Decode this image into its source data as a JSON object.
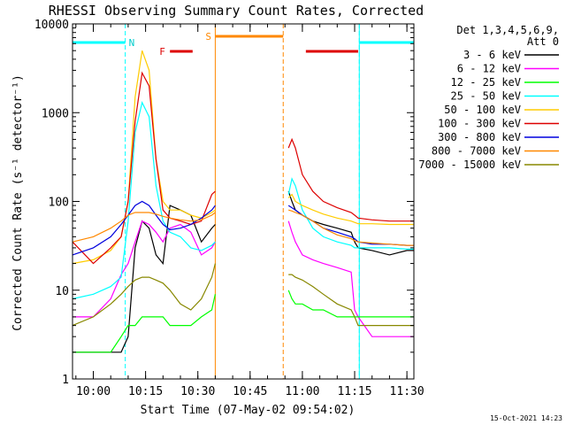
{
  "chart_data": {
    "type": "line",
    "title": "RHESSI Observing Summary Count Rates, Corrected",
    "xlabel": "Start Time (07-May-02 09:54:02)",
    "ylabel": "Corrected Count Rate (s⁻¹ detector⁻¹)",
    "yscale": "log",
    "ylim": [
      1,
      10000
    ],
    "xlim": [
      "09:54:02",
      "11:32:00"
    ],
    "x_ticks": [
      "10:00",
      "10:15",
      "10:30",
      "10:45",
      "11:00",
      "11:15",
      "11:30"
    ],
    "y_ticks": [
      "1",
      "10",
      "100",
      "1000",
      "10000"
    ],
    "legend_title": "Det 1,3,4,5,6,9,",
    "legend_subtitle": "Att 0",
    "legend_placement": "right",
    "timestamp": "15-Oct-2021 14:23",
    "annotations": {
      "N": "N",
      "F": "F",
      "S": "S"
    },
    "markers": {
      "night": [
        [
          "09:54:02",
          "10:09:10"
        ],
        [
          "11:16:20",
          "11:32:00"
        ]
      ],
      "flare": [
        [
          "10:22:00",
          "10:28:30"
        ],
        [
          "11:01:00",
          "11:16:00"
        ]
      ],
      "saa": [
        [
          "10:35:00",
          "10:54:30"
        ]
      ]
    },
    "gaps": [
      [
        "10:35:00",
        "10:55:30"
      ]
    ],
    "series": [
      {
        "name": "3 - 6 keV",
        "color": "#000000",
        "x": [
          "09:54:02",
          "10:00",
          "10:05",
          "10:08",
          "10:10",
          "10:12",
          "10:14",
          "10:16",
          "10:18",
          "10:20",
          "10:22",
          "10:25",
          "10:28",
          "10:31",
          "10:34",
          "10:35",
          "10:56",
          "10:57",
          "10:58",
          "11:00",
          "11:03",
          "11:06",
          "11:10",
          "11:14",
          "11:15",
          "11:16",
          "11:20",
          "11:25",
          "11:30",
          "11:32"
        ],
        "y": [
          2,
          2,
          2,
          2,
          3,
          30,
          60,
          50,
          25,
          20,
          90,
          80,
          70,
          35,
          50,
          55,
          130,
          100,
          80,
          70,
          60,
          55,
          50,
          45,
          35,
          30,
          28,
          25,
          28,
          28
        ]
      },
      {
        "name": "6 - 12 keV",
        "color": "#ff00ff",
        "x": [
          "09:54:02",
          "10:00",
          "10:05",
          "10:08",
          "10:10",
          "10:12",
          "10:14",
          "10:16",
          "10:18",
          "10:20",
          "10:22",
          "10:25",
          "10:28",
          "10:31",
          "10:34",
          "10:35",
          "10:56",
          "10:57",
          "10:58",
          "11:00",
          "11:03",
          "11:06",
          "11:10",
          "11:14",
          "11:15",
          "11:16",
          "11:20",
          "11:25",
          "11:30",
          "11:32"
        ],
        "y": [
          5,
          5,
          8,
          15,
          20,
          35,
          60,
          55,
          45,
          35,
          50,
          55,
          45,
          25,
          30,
          35,
          60,
          45,
          35,
          25,
          22,
          20,
          18,
          16,
          6,
          5,
          3,
          3,
          3,
          3
        ]
      },
      {
        "name": "12 - 25 keV",
        "color": "#00ff00",
        "x": [
          "09:54:02",
          "10:00",
          "10:05",
          "10:08",
          "10:10",
          "10:12",
          "10:14",
          "10:16",
          "10:18",
          "10:20",
          "10:22",
          "10:25",
          "10:28",
          "10:31",
          "10:34",
          "10:35",
          "10:56",
          "10:57",
          "10:58",
          "11:00",
          "11:03",
          "11:06",
          "11:10",
          "11:14",
          "11:15",
          "11:16",
          "11:20",
          "11:25",
          "11:30",
          "11:32"
        ],
        "y": [
          2,
          2,
          2,
          3,
          4,
          4,
          5,
          5,
          5,
          5,
          4,
          4,
          4,
          5,
          6,
          9,
          10,
          8,
          7,
          7,
          6,
          6,
          5,
          5,
          5,
          5,
          5,
          5,
          5,
          5
        ]
      },
      {
        "name": "25 - 50 keV",
        "color": "#00ffff",
        "x": [
          "09:54:02",
          "10:00",
          "10:05",
          "10:08",
          "10:10",
          "10:12",
          "10:14",
          "10:16",
          "10:18",
          "10:20",
          "10:22",
          "10:25",
          "10:28",
          "10:31",
          "10:34",
          "10:35",
          "10:56",
          "10:57",
          "10:58",
          "11:00",
          "11:03",
          "11:06",
          "11:10",
          "11:14",
          "11:15",
          "11:16",
          "11:20",
          "11:25",
          "11:30",
          "11:32"
        ],
        "y": [
          8,
          9,
          11,
          14,
          60,
          600,
          1300,
          900,
          150,
          60,
          45,
          40,
          30,
          28,
          32,
          35,
          120,
          180,
          150,
          80,
          50,
          40,
          35,
          32,
          30,
          30,
          30,
          30,
          29,
          29
        ]
      },
      {
        "name": "50 - 100 keV",
        "color": "#ffcc00",
        "x": [
          "09:54:02",
          "10:00",
          "10:05",
          "10:08",
          "10:10",
          "10:12",
          "10:14",
          "10:16",
          "10:18",
          "10:20",
          "10:22",
          "10:25",
          "10:28",
          "10:31",
          "10:34",
          "10:35",
          "10:56",
          "10:57",
          "10:58",
          "11:00",
          "11:03",
          "11:06",
          "11:10",
          "11:14",
          "11:15",
          "11:16",
          "11:20",
          "11:25",
          "11:30",
          "11:32"
        ],
        "y": [
          20,
          22,
          28,
          40,
          100,
          1500,
          5000,
          3000,
          300,
          100,
          80,
          80,
          70,
          65,
          75,
          80,
          110,
          120,
          100,
          90,
          80,
          72,
          65,
          60,
          58,
          56,
          56,
          55,
          55,
          55
        ]
      },
      {
        "name": "100 - 300 keV",
        "color": "#dd0000",
        "x": [
          "09:54:02",
          "10:00",
          "10:05",
          "10:08",
          "10:10",
          "10:12",
          "10:14",
          "10:16",
          "10:18",
          "10:20",
          "10:22",
          "10:25",
          "10:28",
          "10:31",
          "10:34",
          "10:35",
          "10:56",
          "10:57",
          "10:58",
          "11:00",
          "11:03",
          "11:06",
          "11:10",
          "11:14",
          "11:15",
          "11:16",
          "11:20",
          "11:25",
          "11:30",
          "11:32"
        ],
        "y": [
          35,
          20,
          30,
          40,
          100,
          800,
          2800,
          2000,
          300,
          80,
          65,
          60,
          55,
          60,
          120,
          130,
          400,
          500,
          400,
          200,
          130,
          100,
          85,
          75,
          70,
          65,
          62,
          60,
          60,
          60
        ]
      },
      {
        "name": "300 - 800 keV",
        "color": "#0000dd",
        "x": [
          "09:54:02",
          "10:00",
          "10:05",
          "10:08",
          "10:10",
          "10:12",
          "10:14",
          "10:16",
          "10:18",
          "10:20",
          "10:22",
          "10:25",
          "10:28",
          "10:31",
          "10:34",
          "10:35",
          "10:56",
          "10:57",
          "10:58",
          "11:00",
          "11:03",
          "11:06",
          "11:10",
          "11:14",
          "11:15",
          "11:16",
          "11:20",
          "11:25",
          "11:30",
          "11:32"
        ],
        "y": [
          25,
          30,
          40,
          55,
          70,
          90,
          100,
          90,
          70,
          55,
          48,
          50,
          55,
          65,
          80,
          90,
          90,
          85,
          80,
          70,
          60,
          50,
          45,
          40,
          38,
          35,
          33,
          33,
          32,
          32
        ]
      },
      {
        "name": "800 - 7000 keV",
        "color": "#ff8800",
        "x": [
          "09:54:02",
          "10:00",
          "10:05",
          "10:08",
          "10:10",
          "10:12",
          "10:14",
          "10:16",
          "10:18",
          "10:20",
          "10:22",
          "10:25",
          "10:28",
          "10:31",
          "10:34",
          "10:35",
          "10:56",
          "10:57",
          "10:58",
          "11:00",
          "11:03",
          "11:06",
          "11:10",
          "11:14",
          "11:15",
          "11:16",
          "11:20",
          "11:25",
          "11:30",
          "11:32"
        ],
        "y": [
          35,
          40,
          50,
          60,
          70,
          75,
          75,
          75,
          72,
          68,
          65,
          62,
          60,
          62,
          70,
          75,
          80,
          78,
          75,
          70,
          60,
          50,
          42,
          38,
          36,
          35,
          34,
          33,
          32,
          32
        ]
      },
      {
        "name": "7000 - 15000 keV",
        "color": "#888800",
        "x": [
          "09:54:02",
          "10:00",
          "10:05",
          "10:08",
          "10:10",
          "10:12",
          "10:14",
          "10:16",
          "10:18",
          "10:20",
          "10:22",
          "10:25",
          "10:28",
          "10:31",
          "10:34",
          "10:35",
          "10:56",
          "10:57",
          "10:58",
          "11:00",
          "11:03",
          "11:06",
          "11:10",
          "11:14",
          "11:15",
          "11:16",
          "11:20",
          "11:25",
          "11:30",
          "11:32"
        ],
        "y": [
          4,
          5,
          7,
          9,
          11,
          13,
          14,
          14,
          13,
          12,
          10,
          7,
          6,
          8,
          14,
          20,
          15,
          15,
          14,
          13,
          11,
          9,
          7,
          6,
          5,
          4,
          4,
          4,
          4,
          4
        ]
      }
    ]
  }
}
